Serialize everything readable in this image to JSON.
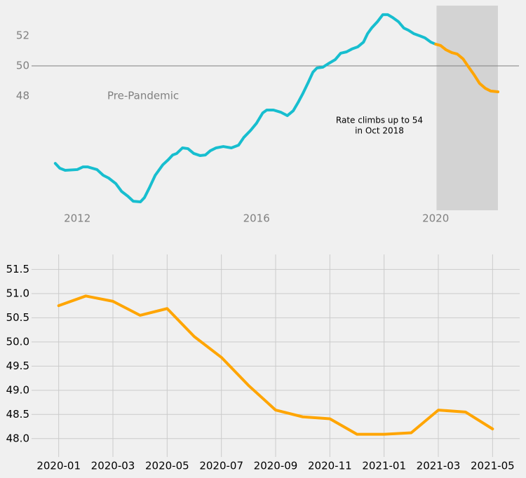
{
  "chart_data": [
    {
      "type": "line",
      "xlim": [
        2010.98,
        2021.86
      ],
      "ylim": [
        40.42,
        54.0
      ],
      "xticks": [
        2012,
        2016,
        2020
      ],
      "yticks": [
        48,
        50,
        52
      ],
      "grid": false,
      "tick_label_color": "#808080",
      "hline": 50,
      "hline_color": "#808080",
      "span": [
        2020.02,
        2021.39
      ],
      "span_color": "#d3d3d3",
      "annotations": [
        "Pre-Pandemic",
        "Rate climbs up to 54",
        "in Oct 2018"
      ],
      "series": [
        {
          "color": "#17becf",
          "x": [
            2011.51,
            2011.61,
            2011.73,
            2012.0,
            2012.13,
            2012.23,
            2012.44,
            2012.58,
            2012.7,
            2012.86,
            2012.99,
            2013.13,
            2013.25,
            2013.41,
            2013.5,
            2013.61,
            2013.74,
            2013.91,
            2014.03,
            2014.13,
            2014.22,
            2014.35,
            2014.47,
            2014.6,
            2014.74,
            2014.86,
            2014.97,
            2015.1,
            2015.26,
            2015.44,
            2015.6,
            2015.72,
            2015.87,
            2016.0,
            2016.14,
            2016.23,
            2016.38,
            2016.54,
            2016.69,
            2016.82,
            2016.94,
            2017.04,
            2017.16,
            2017.26,
            2017.35,
            2017.48,
            2017.6,
            2017.76,
            2017.88,
            2018.01,
            2018.13,
            2018.26,
            2018.39,
            2018.48,
            2018.57,
            2018.7,
            2018.82,
            2018.93,
            2019.04,
            2019.17,
            2019.29,
            2019.39,
            2019.51,
            2019.64,
            2019.76,
            2019.89,
            2020.0
          ],
          "values": [
            43.53,
            43.21,
            43.07,
            43.12,
            43.3,
            43.3,
            43.12,
            42.74,
            42.56,
            42.19,
            41.67,
            41.35,
            41.02,
            40.98,
            41.26,
            41.91,
            42.74,
            43.44,
            43.77,
            44.09,
            44.19,
            44.56,
            44.51,
            44.19,
            44.05,
            44.09,
            44.37,
            44.56,
            44.65,
            44.56,
            44.74,
            45.26,
            45.72,
            46.19,
            46.88,
            47.07,
            47.07,
            46.93,
            46.7,
            47.02,
            47.63,
            48.19,
            48.93,
            49.58,
            49.86,
            49.91,
            50.14,
            50.42,
            50.84,
            50.93,
            51.12,
            51.26,
            51.58,
            52.14,
            52.51,
            52.93,
            53.4,
            53.4,
            53.21,
            52.93,
            52.51,
            52.37,
            52.14,
            52.0,
            51.86,
            51.58,
            51.44
          ]
        },
        {
          "color": "#ffa500",
          "x": [
            2020.0,
            2020.11,
            2020.23,
            2020.36,
            2020.48,
            2020.61,
            2020.73,
            2020.86,
            2020.98,
            2021.11,
            2021.23,
            2021.39
          ],
          "values": [
            51.44,
            51.35,
            51.07,
            50.88,
            50.79,
            50.47,
            49.95,
            49.4,
            48.84,
            48.51,
            48.33,
            48.28
          ]
        }
      ]
    },
    {
      "type": "line",
      "x": [
        "2020-01",
        "2020-02",
        "2020-03",
        "2020-04",
        "2020-05",
        "2020-06",
        "2020-07",
        "2020-08",
        "2020-09",
        "2020-10",
        "2020-11",
        "2020-12",
        "2021-01",
        "2021-02",
        "2021-03",
        "2021-04",
        "2021-05"
      ],
      "xlim": [
        "2019-12",
        "2021-06"
      ],
      "ylim": [
        47.62,
        51.81
      ],
      "xticks": [
        "2020-01",
        "2020-03",
        "2020-05",
        "2020-07",
        "2020-09",
        "2020-11",
        "2021-01",
        "2021-03",
        "2021-05"
      ],
      "yticks": [
        {
          "value": 48,
          "label": "48.0"
        },
        48.5,
        {
          "value": 49,
          "label": "49.0"
        },
        49.5,
        {
          "value": 50,
          "label": "50.0"
        },
        50.5,
        {
          "value": 51,
          "label": "51.0"
        },
        51.5
      ],
      "grid": true,
      "tick_label_color": "#000000",
      "series": [
        {
          "color": "#ffa500",
          "values": [
            50.75,
            50.95,
            50.84,
            50.55,
            50.69,
            50.11,
            49.68,
            49.1,
            48.59,
            48.45,
            48.41,
            48.09,
            48.09,
            48.12,
            48.59,
            48.55,
            48.2
          ]
        }
      ]
    }
  ]
}
